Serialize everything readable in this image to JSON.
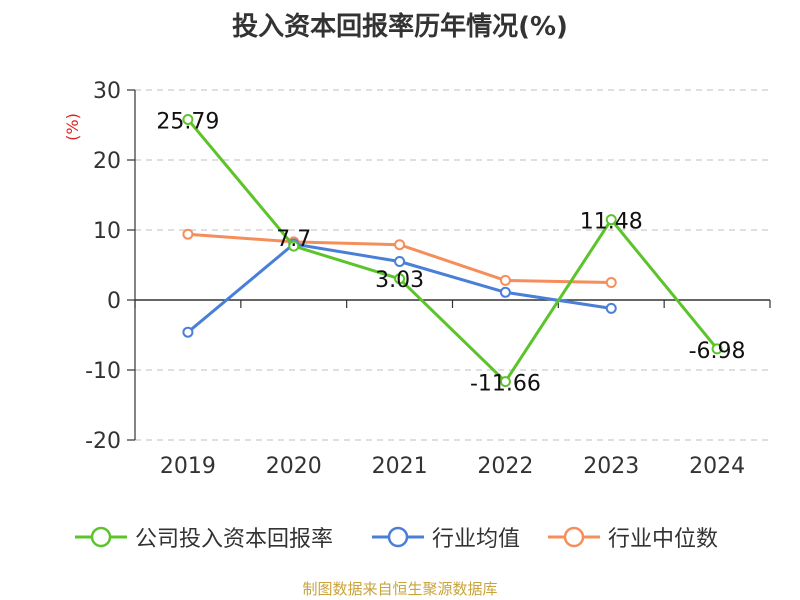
{
  "title": "投入资本回报率历年情况(%)",
  "source": "制图数据来自恒生聚源数据库",
  "chart_data": {
    "type": "line",
    "title": "投入资本回报率历年情况(%)",
    "ylabel": "(%)",
    "xlabel": "",
    "categories": [
      "2019",
      "2020",
      "2021",
      "2022",
      "2023",
      "2024"
    ],
    "ylim": [
      -20,
      30
    ],
    "yticks": [
      30,
      20,
      10,
      0,
      -10,
      -20
    ],
    "ytick_labels": [
      "30",
      "20",
      "10",
      "0",
      "-10",
      "-20"
    ],
    "grid": "horizontal-dashed",
    "legend_position": "bottom",
    "series": [
      {
        "name": "公司投入资本回报率",
        "color": "#5cc42b",
        "values": [
          25.79,
          7.7,
          3.03,
          -11.66,
          11.48,
          -6.98
        ],
        "labels": [
          "25.79",
          "7.7",
          "3.03",
          "-11.66",
          "11.48",
          "-6.98"
        ]
      },
      {
        "name": "行业均值",
        "color": "#4a7fd8",
        "values": [
          -4.6,
          8.0,
          5.5,
          1.1,
          -1.2,
          null
        ]
      },
      {
        "name": "行业中位数",
        "color": "#f58e5a",
        "values": [
          9.4,
          8.3,
          7.9,
          2.8,
          2.5,
          null
        ]
      }
    ]
  }
}
